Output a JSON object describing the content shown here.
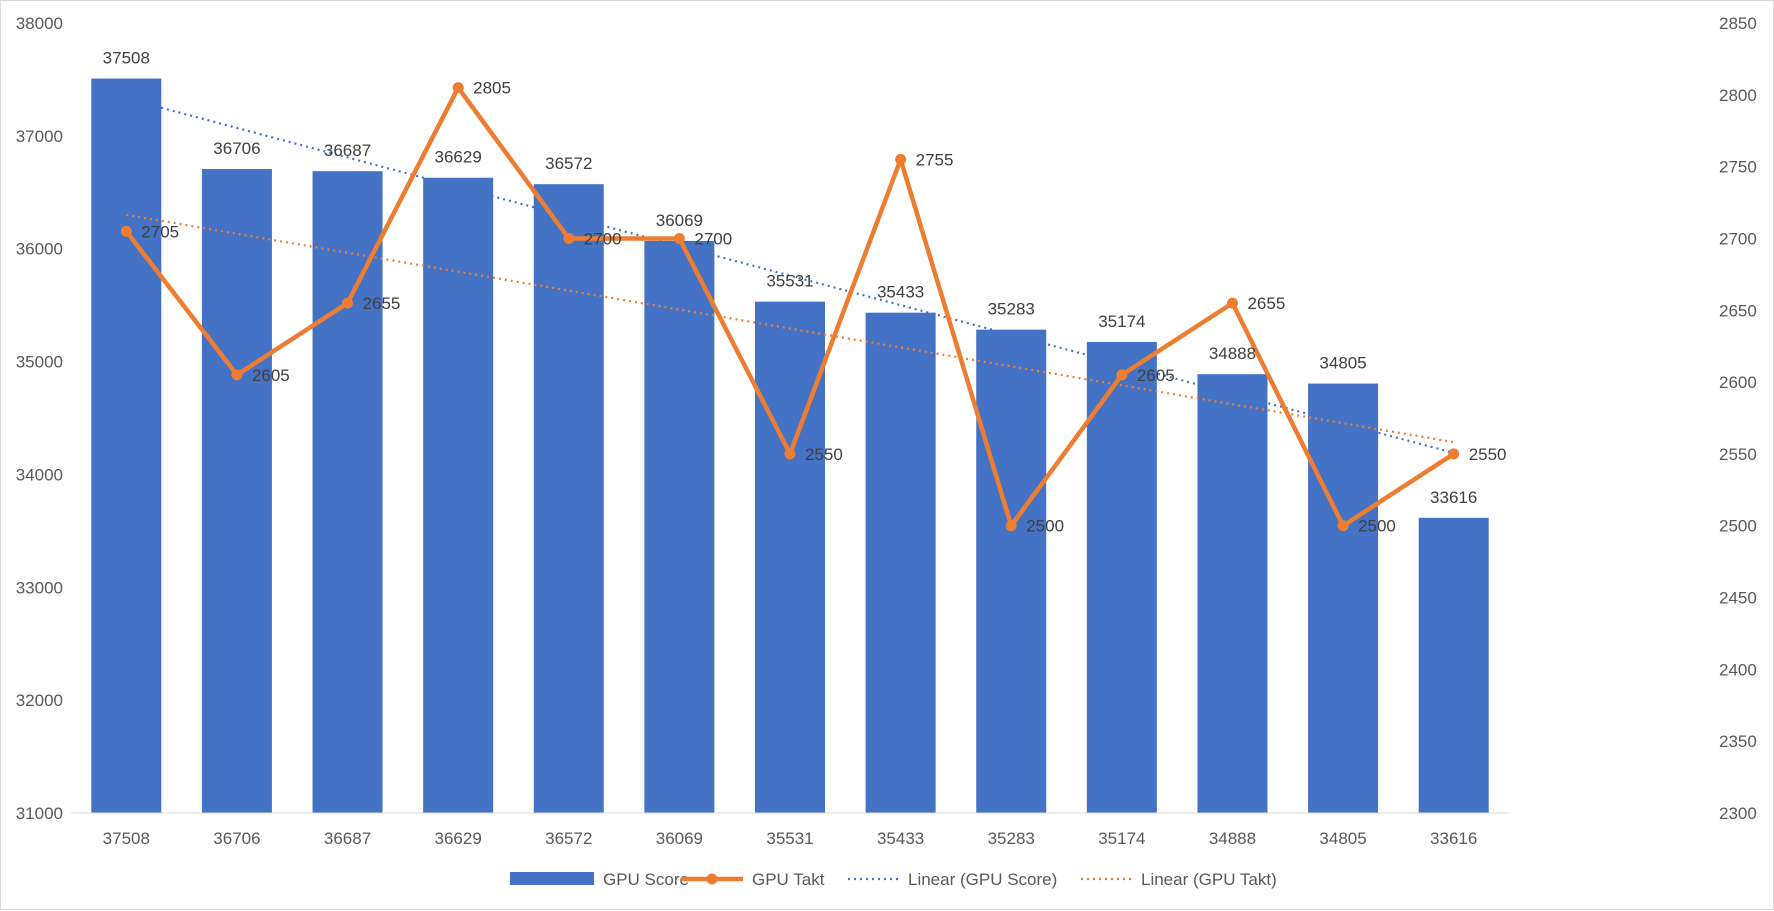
{
  "chart_data": {
    "type": "bar",
    "categories": [
      "37508",
      "36706",
      "36687",
      "36629",
      "36572",
      "36069",
      "35531",
      "35433",
      "35283",
      "35174",
      "34888",
      "34805",
      "33616"
    ],
    "series": [
      {
        "name": "GPU Score",
        "type": "bar",
        "axis": "left",
        "values": [
          37508,
          36706,
          36687,
          36629,
          36572,
          36069,
          35531,
          35433,
          35283,
          35174,
          34888,
          34805,
          33616
        ],
        "color": "#4472c4"
      },
      {
        "name": "GPU Takt",
        "type": "line",
        "axis": "right",
        "values": [
          2705,
          2605,
          2655,
          2805,
          2700,
          2700,
          2550,
          2755,
          2500,
          2605,
          2655,
          2500,
          2550
        ],
        "color": "#ed7d31"
      }
    ],
    "trendlines": [
      {
        "name": "Linear (GPU Score)",
        "of": "GPU Score",
        "style": "dotted",
        "color": "#4472c4"
      },
      {
        "name": "Linear (GPU Takt)",
        "of": "GPU Takt",
        "style": "dotted",
        "color": "#ed7d31"
      }
    ],
    "y_left": {
      "min": 31000,
      "max": 38000,
      "ticks": [
        31000,
        32000,
        33000,
        34000,
        35000,
        36000,
        37000,
        38000
      ]
    },
    "y_right": {
      "min": 2300,
      "max": 2850,
      "ticks": [
        2300,
        2350,
        2400,
        2450,
        2500,
        2550,
        2600,
        2650,
        2700,
        2750,
        2800,
        2850
      ]
    },
    "grid": false,
    "legend": "bottom"
  }
}
